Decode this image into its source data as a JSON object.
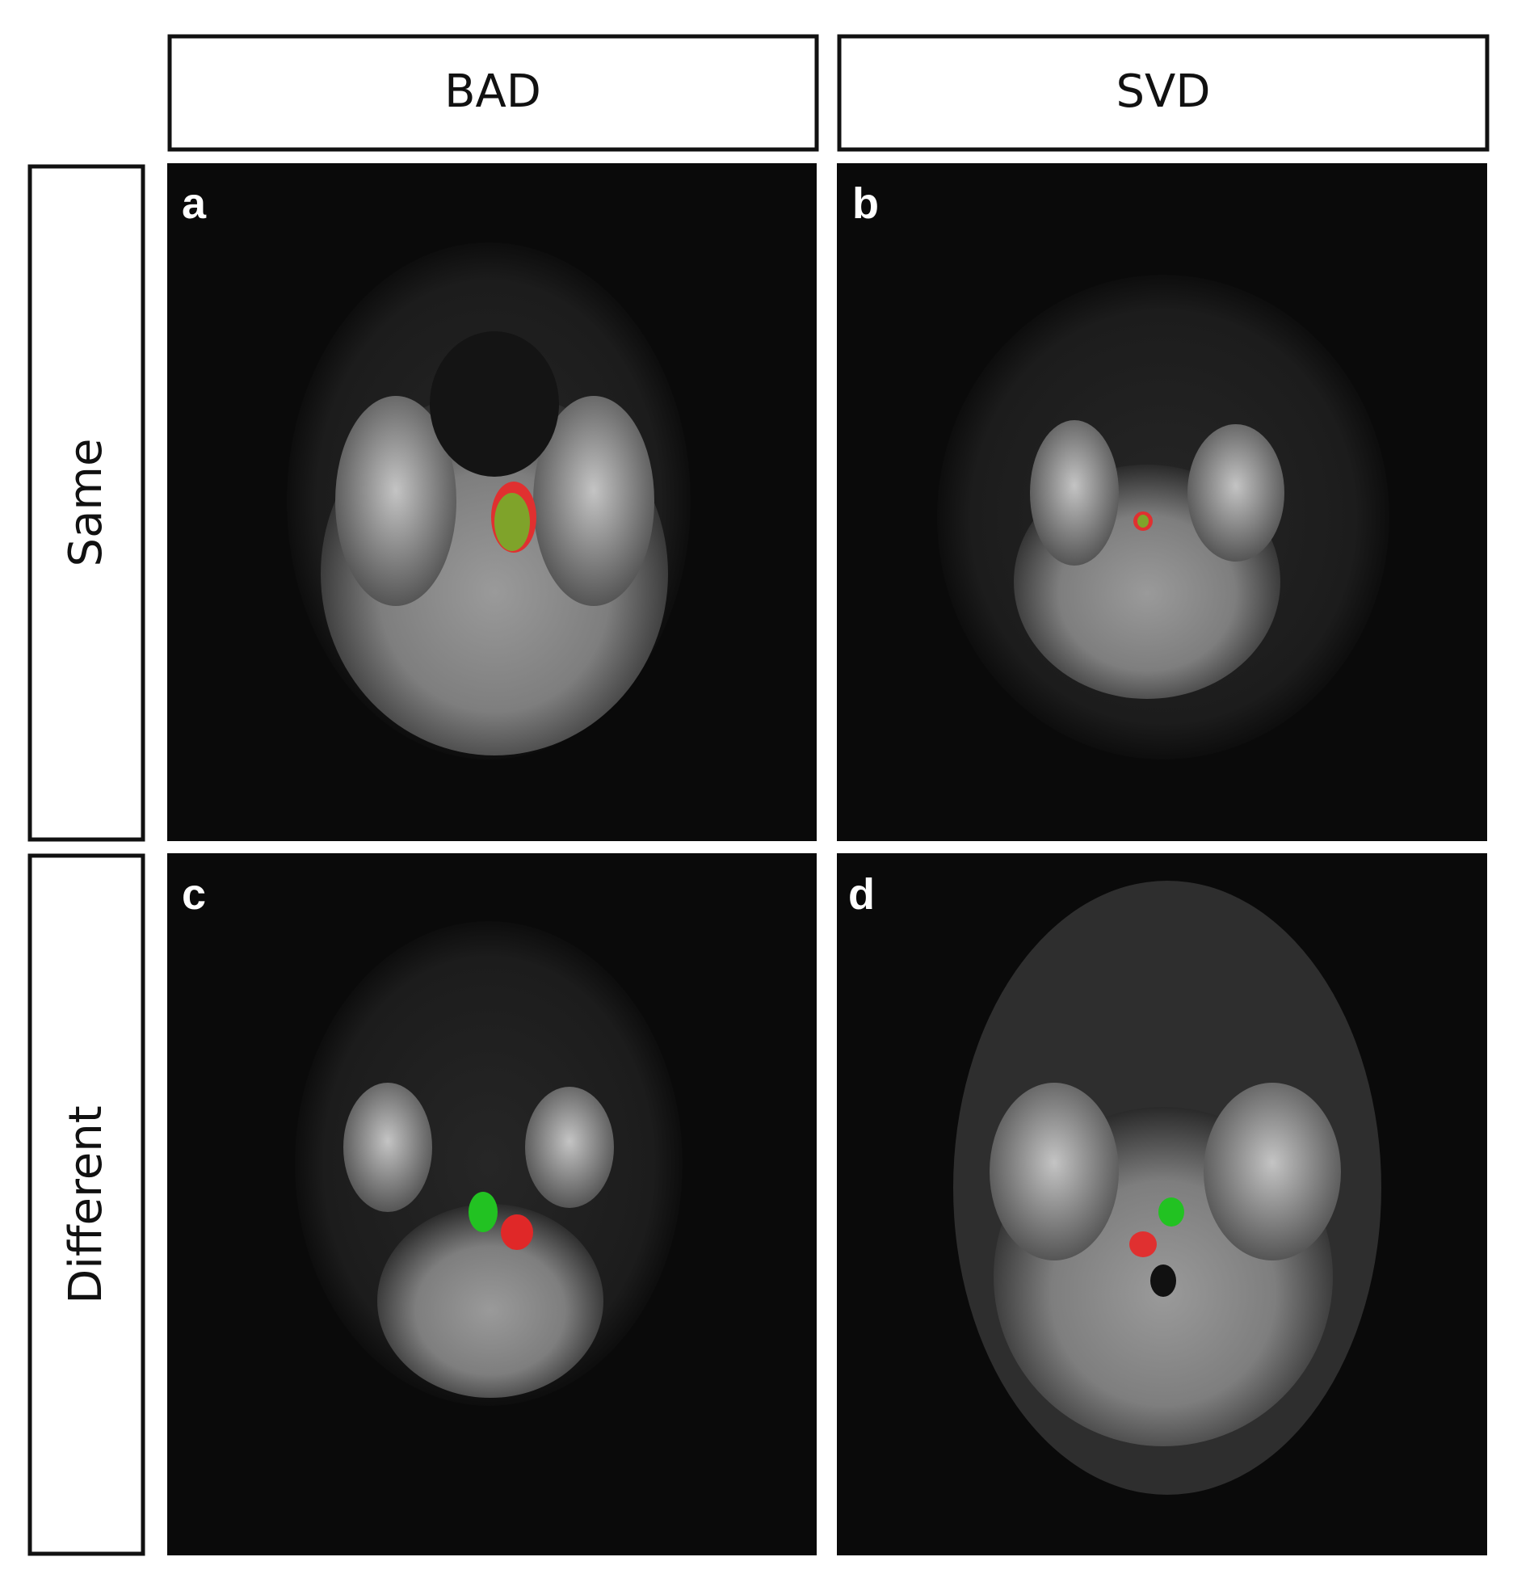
{
  "columns": [
    "BAD",
    "SVD"
  ],
  "rows": [
    "Same",
    "Different"
  ],
  "panels": [
    "a",
    "b",
    "c",
    "d"
  ]
}
